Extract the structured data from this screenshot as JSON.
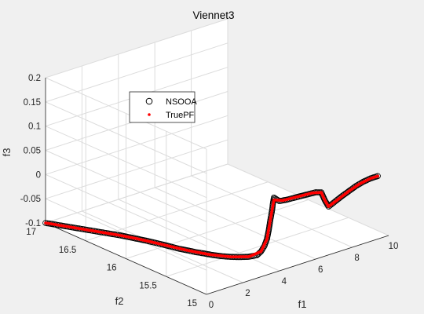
{
  "chart_data": {
    "type": "scatter",
    "title": "Viennet3",
    "xlabel": "f1",
    "ylabel": "f2",
    "zlabel": "f3",
    "xlim": [
      0,
      10
    ],
    "ylim": [
      15,
      17
    ],
    "zlim": [
      -0.1,
      0.2
    ],
    "xticks": [
      "0",
      "2",
      "4",
      "6",
      "8",
      "10"
    ],
    "yticks": [
      "15",
      "15.5",
      "16",
      "16.5",
      "17"
    ],
    "zticks": [
      "-0.1",
      "-0.05",
      "0",
      "0.05",
      "0.1",
      "0.15",
      "0.2"
    ],
    "grid": true,
    "legend_position": "upper-left",
    "colors": {
      "nsooa": "#000000",
      "truepf": "#ff0000",
      "background": "#f0f0f0",
      "axes": "#ffffff"
    },
    "series": [
      {
        "name": "NSOOA",
        "marker": "circle",
        "points": [
          [
            0.0,
            17.0,
            -0.1
          ],
          [
            0.1,
            16.96,
            -0.1
          ],
          [
            0.2,
            16.92,
            -0.1
          ],
          [
            0.3,
            16.88,
            -0.1
          ],
          [
            0.4,
            16.84,
            -0.1
          ],
          [
            0.5,
            16.8,
            -0.1
          ],
          [
            0.6,
            16.76,
            -0.1
          ],
          [
            0.7,
            16.72,
            -0.1
          ],
          [
            0.8,
            16.68,
            -0.1
          ],
          [
            0.9,
            16.64,
            -0.1
          ],
          [
            1.0,
            16.6,
            -0.1
          ],
          [
            1.1,
            16.56,
            -0.1
          ],
          [
            1.2,
            16.52,
            -0.1
          ],
          [
            1.3,
            16.48,
            -0.1
          ],
          [
            1.4,
            16.44,
            -0.1
          ],
          [
            1.5,
            16.4,
            -0.1
          ],
          [
            1.6,
            16.35,
            -0.1
          ],
          [
            1.7,
            16.3,
            -0.1
          ],
          [
            1.8,
            16.25,
            -0.1
          ],
          [
            1.9,
            16.2,
            -0.1
          ],
          [
            2.0,
            16.14,
            -0.1
          ],
          [
            2.1,
            16.08,
            -0.1
          ],
          [
            2.2,
            16.02,
            -0.1
          ],
          [
            2.3,
            15.95,
            -0.1
          ],
          [
            2.4,
            15.88,
            -0.1
          ],
          [
            2.5,
            15.81,
            -0.099
          ],
          [
            2.6,
            15.73,
            -0.098
          ],
          [
            2.7,
            15.65,
            -0.096
          ],
          [
            2.8,
            15.56,
            -0.094
          ],
          [
            2.9,
            15.47,
            -0.091
          ],
          [
            3.0,
            15.38,
            -0.087
          ],
          [
            3.1,
            15.29,
            -0.082
          ],
          [
            3.2,
            15.2,
            -0.076
          ],
          [
            3.3,
            15.12,
            -0.068
          ],
          [
            3.35,
            15.08,
            -0.058
          ],
          [
            3.4,
            15.05,
            -0.045
          ],
          [
            3.45,
            15.03,
            -0.03
          ],
          [
            3.5,
            15.02,
            -0.012
          ],
          [
            3.55,
            15.01,
            0.01
          ],
          [
            3.6,
            15.0,
            0.03
          ],
          [
            3.65,
            15.0,
            0.045
          ],
          [
            3.7,
            15.0,
            0.055
          ],
          [
            4.0,
            15.0,
            0.044
          ],
          [
            4.4,
            15.0,
            0.042
          ],
          [
            4.8,
            15.0,
            0.041
          ],
          [
            5.2,
            15.0,
            0.04
          ],
          [
            5.6,
            15.0,
            0.039
          ],
          [
            6.0,
            15.0,
            0.038
          ],
          [
            6.3,
            15.0,
            0.034
          ],
          [
            6.5,
            15.0,
            0.015
          ],
          [
            6.7,
            15.0,
            0.0
          ],
          [
            7.0,
            15.0,
            0.005
          ],
          [
            7.4,
            15.0,
            0.012
          ],
          [
            7.8,
            15.0,
            0.018
          ],
          [
            8.2,
            15.0,
            0.024
          ],
          [
            8.6,
            15.0,
            0.028
          ],
          [
            9.0,
            15.0,
            0.03
          ],
          [
            9.4,
            15.0,
            0.03
          ]
        ]
      },
      {
        "name": "TruePF",
        "marker": "dot",
        "points": [
          [
            0.0,
            17.0,
            -0.1
          ],
          [
            0.25,
            16.9,
            -0.1
          ],
          [
            0.5,
            16.8,
            -0.1
          ],
          [
            0.75,
            16.7,
            -0.1
          ],
          [
            1.0,
            16.6,
            -0.1
          ],
          [
            1.25,
            16.5,
            -0.1
          ],
          [
            1.5,
            16.4,
            -0.1
          ],
          [
            1.75,
            16.28,
            -0.1
          ],
          [
            2.0,
            16.14,
            -0.1
          ],
          [
            2.25,
            15.99,
            -0.1
          ],
          [
            2.5,
            15.81,
            -0.099
          ],
          [
            2.75,
            15.6,
            -0.095
          ],
          [
            3.0,
            15.38,
            -0.087
          ],
          [
            3.2,
            15.2,
            -0.076
          ],
          [
            3.35,
            15.08,
            -0.058
          ],
          [
            3.45,
            15.03,
            -0.03
          ],
          [
            3.55,
            15.01,
            0.01
          ],
          [
            3.65,
            15.0,
            0.04
          ],
          [
            3.7,
            15.0,
            0.05
          ],
          [
            4.2,
            15.0,
            0.043
          ],
          [
            5.0,
            15.0,
            0.041
          ],
          [
            5.8,
            15.0,
            0.039
          ],
          [
            6.3,
            15.0,
            0.034
          ],
          [
            6.5,
            15.0,
            0.015
          ],
          [
            6.7,
            15.0,
            0.0
          ],
          [
            7.2,
            15.0,
            0.008
          ],
          [
            7.8,
            15.0,
            0.018
          ],
          [
            8.4,
            15.0,
            0.026
          ],
          [
            9.0,
            15.0,
            0.03
          ],
          [
            9.4,
            15.0,
            0.03
          ]
        ]
      }
    ]
  }
}
